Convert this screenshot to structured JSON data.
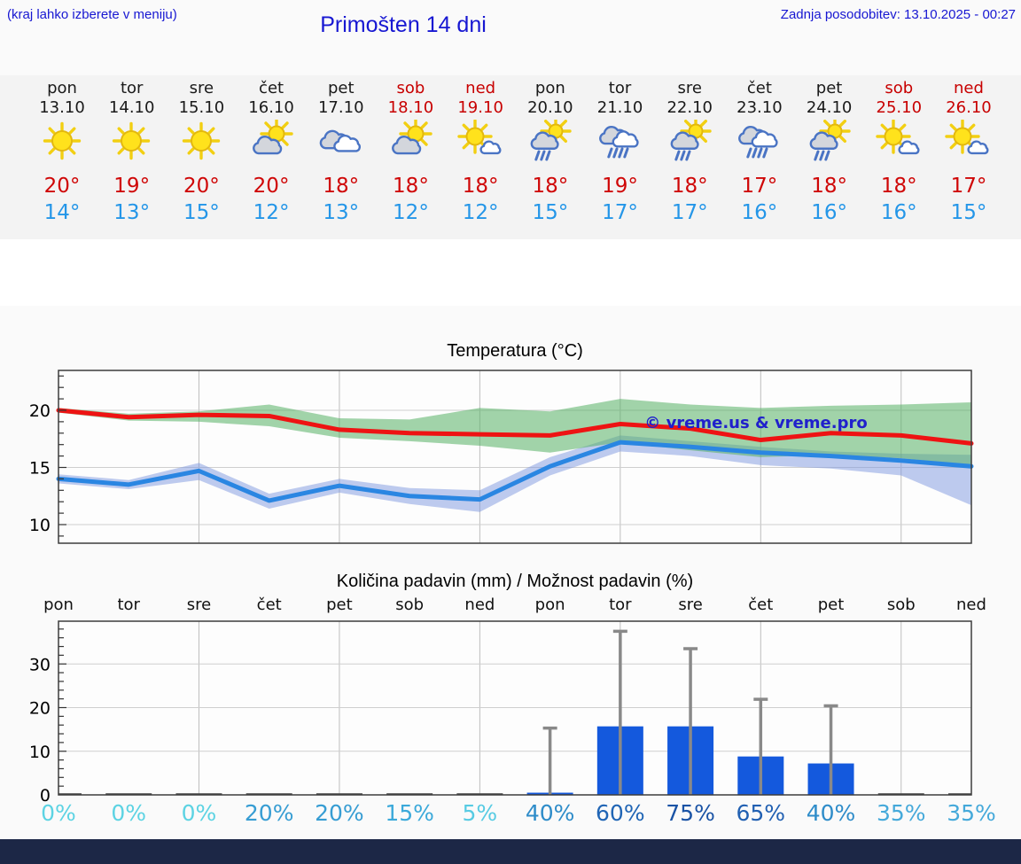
{
  "header": {
    "hint": "(kraj lahko izberete v meniju)",
    "title": "Primošten 14 dni",
    "updated": "Zadnja posodobitev: 13.10.2025 - 00:27"
  },
  "days": [
    {
      "name": "pon",
      "date": "13.10",
      "weekend": false,
      "icon": "sun",
      "high": "20°",
      "low": "14°",
      "pop": "0%",
      "pop_color": "#5cd3e3"
    },
    {
      "name": "tor",
      "date": "14.10",
      "weekend": false,
      "icon": "sun",
      "high": "19°",
      "low": "13°",
      "pop": "0%",
      "pop_color": "#5cd3e3"
    },
    {
      "name": "sre",
      "date": "15.10",
      "weekend": false,
      "icon": "sun",
      "high": "20°",
      "low": "15°",
      "pop": "0%",
      "pop_color": "#5cd3e3"
    },
    {
      "name": "čet",
      "date": "16.10",
      "weekend": false,
      "icon": "sun-cloud-left",
      "high": "20°",
      "low": "12°",
      "pop": "20%",
      "pop_color": "#379dd3"
    },
    {
      "name": "pet",
      "date": "17.10",
      "weekend": false,
      "icon": "clouds",
      "high": "18°",
      "low": "13°",
      "pop": "20%",
      "pop_color": "#379dd3"
    },
    {
      "name": "sob",
      "date": "18.10",
      "weekend": true,
      "icon": "sun-cloud-left",
      "high": "18°",
      "low": "12°",
      "pop": "15%",
      "pop_color": "#3ba9da"
    },
    {
      "name": "ned",
      "date": "19.10",
      "weekend": true,
      "icon": "sun-cloud-right",
      "high": "18°",
      "low": "12°",
      "pop": "5%",
      "pop_color": "#57cbe3"
    },
    {
      "name": "pon",
      "date": "20.10",
      "weekend": false,
      "icon": "sun-cloud-rain",
      "high": "18°",
      "low": "15°",
      "pop": "40%",
      "pop_color": "#2e8cc9"
    },
    {
      "name": "tor",
      "date": "21.10",
      "weekend": false,
      "icon": "clouds-rain",
      "high": "19°",
      "low": "17°",
      "pop": "60%",
      "pop_color": "#2065b5"
    },
    {
      "name": "sre",
      "date": "22.10",
      "weekend": false,
      "icon": "sun-cloud-rain",
      "high": "18°",
      "low": "17°",
      "pop": "75%",
      "pop_color": "#1a53a5"
    },
    {
      "name": "čet",
      "date": "23.10",
      "weekend": false,
      "icon": "clouds-rain",
      "high": "17°",
      "low": "16°",
      "pop": "65%",
      "pop_color": "#2160b2"
    },
    {
      "name": "pet",
      "date": "24.10",
      "weekend": false,
      "icon": "sun-cloud-rain",
      "high": "18°",
      "low": "16°",
      "pop": "40%",
      "pop_color": "#2e8cc9"
    },
    {
      "name": "sob",
      "date": "25.10",
      "weekend": true,
      "icon": "sun-cloud-right",
      "high": "18°",
      "low": "16°",
      "pop": "35%",
      "pop_color": "#45a9da"
    },
    {
      "name": "ned",
      "date": "26.10",
      "weekend": true,
      "icon": "sun-cloud-right",
      "high": "17°",
      "low": "15°",
      "pop": "35%",
      "pop_color": "#45a9da"
    }
  ],
  "watermark": "© vreme.us & vreme.pro",
  "chart_data": [
    {
      "type": "line",
      "title": "Temperatura (°C)",
      "x": [
        "13.10",
        "14.10",
        "15.10",
        "16.10",
        "17.10",
        "18.10",
        "19.10",
        "20.10",
        "21.10",
        "22.10",
        "23.10",
        "24.10",
        "25.10",
        "26.10"
      ],
      "ylim": [
        8.5,
        23.5
      ],
      "yticks": [
        10,
        15,
        20
      ],
      "grid": true,
      "series": [
        {
          "name": "max-temp",
          "color": "#ee1313",
          "values": [
            20.0,
            19.4,
            19.6,
            19.5,
            18.3,
            18.0,
            17.9,
            17.8,
            18.8,
            18.4,
            17.4,
            18.0,
            17.8,
            17.1
          ]
        },
        {
          "name": "min-temp",
          "color": "#2a86e2",
          "values": [
            14.0,
            13.5,
            14.7,
            12.1,
            13.4,
            12.5,
            12.2,
            15.1,
            17.2,
            16.8,
            16.3,
            16.0,
            15.6,
            15.1
          ]
        },
        {
          "name": "max-range-upper",
          "color": "#55b164",
          "values": [
            20.2,
            19.7,
            19.9,
            20.5,
            19.3,
            19.2,
            20.2,
            19.9,
            21.0,
            20.5,
            20.2,
            20.4,
            20.5,
            20.7
          ]
        },
        {
          "name": "max-range-lower",
          "color": "#55b164",
          "values": [
            19.8,
            19.1,
            19.0,
            18.6,
            17.6,
            17.3,
            16.9,
            16.3,
            17.2,
            16.5,
            15.9,
            16.1,
            15.8,
            15.2
          ]
        },
        {
          "name": "min-range-upper",
          "color": "#7d97e0",
          "values": [
            14.4,
            13.9,
            15.4,
            12.7,
            14.0,
            13.2,
            13.0,
            15.9,
            17.8,
            17.3,
            16.8,
            16.4,
            16.2,
            16.1
          ]
        },
        {
          "name": "min-range-lower",
          "color": "#7d97e0",
          "values": [
            13.6,
            13.1,
            13.9,
            11.4,
            12.8,
            11.8,
            11.1,
            14.3,
            16.4,
            16.0,
            15.2,
            14.9,
            14.3,
            11.7
          ]
        }
      ]
    },
    {
      "type": "bar",
      "title": "Količina padavin (mm) / Možnost padavin (%)",
      "categories": [
        "pon",
        "tor",
        "sre",
        "čet",
        "pet",
        "sob",
        "ned",
        "pon",
        "tor",
        "sre",
        "čet",
        "pet",
        "sob",
        "ned"
      ],
      "values_mm": [
        0.1,
        0.1,
        0.1,
        0.1,
        0.1,
        0.1,
        0.1,
        0.5,
        15.7,
        15.7,
        8.8,
        7.2,
        0.1,
        0.1
      ],
      "whisker_max_mm": [
        0,
        0,
        0,
        0,
        0,
        0,
        0,
        15.3,
        37.5,
        33.5,
        21.9,
        20.4,
        0,
        0
      ],
      "probability_pct": [
        0,
        0,
        0,
        20,
        20,
        15,
        5,
        40,
        60,
        75,
        65,
        40,
        35,
        35
      ],
      "ylim": [
        0,
        39.8
      ],
      "yticks": [
        0,
        10,
        20,
        30
      ],
      "grid": true,
      "bar_color": "#1459dd",
      "whisker_color": "#898989"
    }
  ],
  "colors": {
    "header_text": "#1717d2",
    "weekend_red": "#c80000",
    "high_temp": "#cf0606",
    "low_temp": "#2496e8",
    "strip_bg": "#f3f3f3",
    "bottom_bar": "#1c2746",
    "watermark_blue": "#2020cc"
  }
}
